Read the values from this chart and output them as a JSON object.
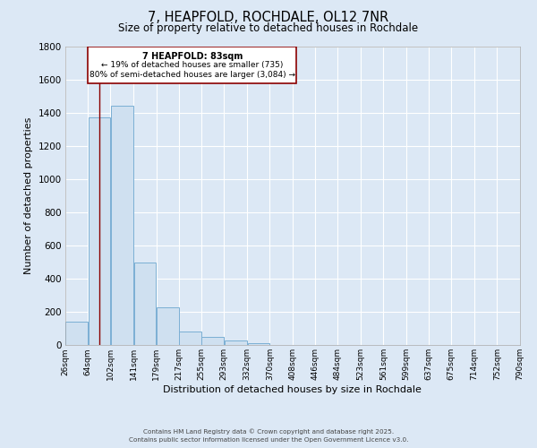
{
  "title": "7, HEAPFOLD, ROCHDALE, OL12 7NR",
  "subtitle": "Size of property relative to detached houses in Rochdale",
  "xlabel": "Distribution of detached houses by size in Rochdale",
  "ylabel": "Number of detached properties",
  "bar_color": "#cfe0f0",
  "bar_edge_color": "#7bafd4",
  "background_color": "#dce8f5",
  "plot_background_color": "#dce8f5",
  "grid_color": "#ffffff",
  "bar_left_edges": [
    26,
    64,
    102,
    141,
    179,
    217,
    255,
    293,
    332,
    370,
    408,
    446,
    484,
    523,
    561,
    599,
    637,
    675,
    714,
    752
  ],
  "bar_widths": [
    38,
    38,
    39,
    38,
    38,
    38,
    38,
    39,
    38,
    38,
    38,
    38,
    39,
    38,
    38,
    38,
    38,
    39,
    38,
    38
  ],
  "bar_heights": [
    140,
    1370,
    1440,
    500,
    230,
    85,
    50,
    30,
    10,
    0,
    0,
    0,
    0,
    0,
    0,
    0,
    0,
    0,
    0,
    0
  ],
  "x_tick_labels": [
    "26sqm",
    "64sqm",
    "102sqm",
    "141sqm",
    "179sqm",
    "217sqm",
    "255sqm",
    "293sqm",
    "332sqm",
    "370sqm",
    "408sqm",
    "446sqm",
    "484sqm",
    "523sqm",
    "561sqm",
    "599sqm",
    "637sqm",
    "675sqm",
    "714sqm",
    "752sqm",
    "790sqm"
  ],
  "x_tick_positions": [
    26,
    64,
    102,
    141,
    179,
    217,
    255,
    293,
    332,
    370,
    408,
    446,
    484,
    523,
    561,
    599,
    637,
    675,
    714,
    752,
    790
  ],
  "ylim": [
    0,
    1800
  ],
  "xlim": [
    26,
    790
  ],
  "y_ticks": [
    0,
    200,
    400,
    600,
    800,
    1000,
    1200,
    1400,
    1600,
    1800
  ],
  "red_line_x": 83,
  "annotation_text_line1": "7 HEAPFOLD: 83sqm",
  "annotation_text_line2": "← 19% of detached houses are smaller (735)",
  "annotation_text_line3": "80% of semi-detached houses are larger (3,084) →",
  "footnote1": "Contains HM Land Registry data © Crown copyright and database right 2025.",
  "footnote2": "Contains public sector information licensed under the Open Government Licence v3.0."
}
